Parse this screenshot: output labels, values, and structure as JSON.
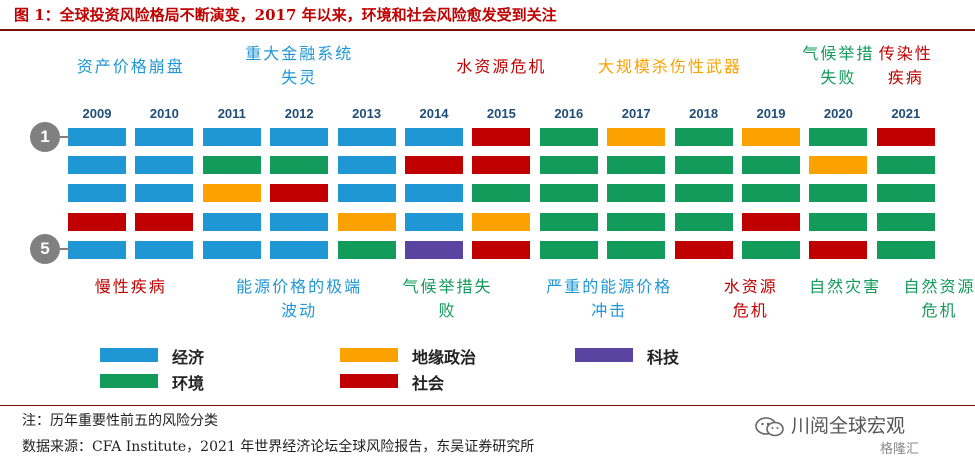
{
  "title": "图 1：全球投资风险格局不断演变，2017 年以来，环境和社会风险愈发受到关注",
  "colors": {
    "economic": "#1f97d4",
    "geopolitical": "#fba200",
    "technology": "#5a44a2",
    "environmental": "#129b5a",
    "societal": "#c00000"
  },
  "ranks": {
    "top": "1",
    "bottom": "5"
  },
  "chart_data": {
    "type": "table",
    "years": [
      "2009",
      "2010",
      "2011",
      "2012",
      "2013",
      "2014",
      "2015",
      "2016",
      "2017",
      "2018",
      "2019",
      "2020",
      "2021"
    ],
    "categories": [
      "economic",
      "geopolitical",
      "technology",
      "environmental",
      "societal"
    ],
    "grid": [
      [
        "economic",
        "economic",
        "economic",
        "economic",
        "economic",
        "economic",
        "societal",
        "environmental",
        "geopolitical",
        "environmental",
        "geopolitical",
        "environmental",
        "societal"
      ],
      [
        "economic",
        "economic",
        "environmental",
        "environmental",
        "economic",
        "societal",
        "societal",
        "environmental",
        "environmental",
        "environmental",
        "environmental",
        "geopolitical",
        "environmental"
      ],
      [
        "economic",
        "economic",
        "geopolitical",
        "societal",
        "economic",
        "economic",
        "environmental",
        "environmental",
        "environmental",
        "environmental",
        "environmental",
        "environmental",
        "environmental"
      ],
      [
        "societal",
        "societal",
        "economic",
        "economic",
        "geopolitical",
        "economic",
        "geopolitical",
        "environmental",
        "environmental",
        "environmental",
        "societal",
        "environmental",
        "environmental"
      ],
      [
        "economic",
        "economic",
        "economic",
        "economic",
        "environmental",
        "technology",
        "societal",
        "environmental",
        "environmental",
        "societal",
        "environmental",
        "societal",
        "environmental"
      ]
    ],
    "annotations_top": [
      {
        "text": "资产价格崩盘",
        "col": 0.5,
        "span": 2,
        "color": "economic",
        "lines": 1
      },
      {
        "text": "重大金融系统\n失灵",
        "col": 3,
        "span": 2,
        "color": "economic",
        "lines": 2
      },
      {
        "text": "水资源危机",
        "col": 6,
        "span": 2,
        "color": "societal",
        "lines": 1
      },
      {
        "text": "大规模杀伤性武器",
        "col": 8.5,
        "span": 3,
        "color": "geopolitical",
        "lines": 1
      },
      {
        "text": "气候举措\n失败",
        "col": 11,
        "span": 1.5,
        "color": "environmental",
        "lines": 2
      },
      {
        "text": "传染性\n疾病",
        "col": 12,
        "span": 1.5,
        "color": "societal",
        "lines": 2
      }
    ],
    "annotations_bottom": [
      {
        "text": "慢性疾病",
        "col": 0.5,
        "span": 2,
        "color": "societal"
      },
      {
        "text": "能源价格的极端\n波动",
        "col": 3,
        "span": 2.5,
        "color": "economic"
      },
      {
        "text": "气候举措失\n败",
        "col": 5.2,
        "span": 2,
        "color": "environmental"
      },
      {
        "text": "严重的能源价格\n冲击",
        "col": 7.6,
        "span": 2.5,
        "color": "economic"
      },
      {
        "text": "水资源\n危机",
        "col": 9.7,
        "span": 1.5,
        "color": "societal"
      },
      {
        "text": "自然灾害",
        "col": 11.1,
        "span": 1.8,
        "color": "environmental"
      },
      {
        "text": "自然资源\n危机",
        "col": 12.5,
        "span": 1.6,
        "color": "environmental"
      }
    ],
    "legend": [
      {
        "key": "economic",
        "label": "经济"
      },
      {
        "key": "geopolitical",
        "label": "地缘政治"
      },
      {
        "key": "technology",
        "label": "科技"
      },
      {
        "key": "environmental",
        "label": "环境"
      },
      {
        "key": "societal",
        "label": "社会"
      }
    ]
  },
  "note": "注：历年重要性前五的风险分类",
  "source": "数据来源：CFA Institute，2021 年世界经济论坛全球风险报告，东吴证券研究所",
  "watermark_text": "川阅全球宏观",
  "watermark_logo": "格隆汇"
}
